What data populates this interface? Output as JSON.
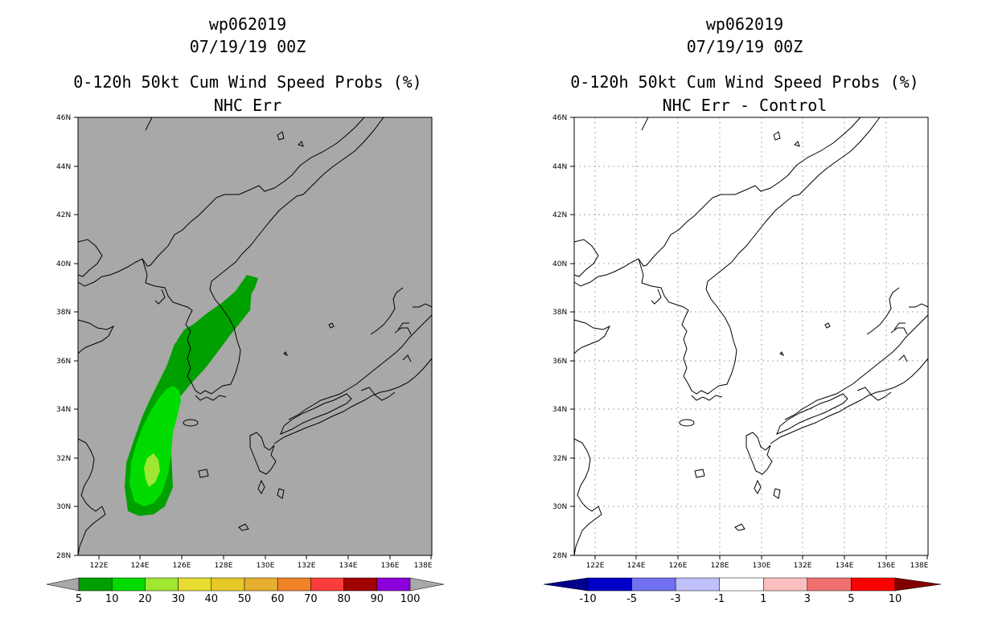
{
  "left_panel": {
    "title_line1": "wp062019",
    "title_line2": "07/19/19 00Z",
    "title_line3": "0-120h 50kt Cum Wind Speed Probs (%)",
    "title_line4": "NHC Err",
    "background_color": "#a8a8a8",
    "colorbar": {
      "labels": [
        "5",
        "10",
        "20",
        "30",
        "40",
        "50",
        "60",
        "70",
        "80",
        "90",
        "100"
      ],
      "colors": [
        "#00a000",
        "#00dc00",
        "#a0e632",
        "#e6dc32",
        "#e6c828",
        "#e6af2d",
        "#f08228",
        "#fa3c3c",
        "#a00000",
        "#8c00dc"
      ],
      "end_color": "#a8a8a8"
    },
    "contours": [
      {
        "level": "5-10",
        "color": "#00a000"
      },
      {
        "level": "10-20",
        "color": "#00dc00"
      },
      {
        "level": "20-30",
        "color": "#a0e632"
      }
    ]
  },
  "right_panel": {
    "title_line1": "wp062019",
    "title_line2": "07/19/19 00Z",
    "title_line3": "0-120h 50kt Cum Wind Speed Probs (%)",
    "title_line4": "NHC Err - Control",
    "background_color": "#ffffff",
    "colorbar": {
      "labels": [
        "-10",
        "-5",
        "-3",
        "-1",
        "1",
        "3",
        "5",
        "10"
      ],
      "colors": [
        "#0000c8",
        "#7070f0",
        "#c0c0fa",
        "#ffffff",
        "#fac0c0",
        "#f07070",
        "#fa0000"
      ],
      "low_end_color": "#00008c",
      "high_end_color": "#800000"
    }
  },
  "map": {
    "lat_labels": [
      "46N",
      "44N",
      "42N",
      "40N",
      "38N",
      "36N",
      "34N",
      "32N",
      "30N",
      "28N"
    ],
    "lon_labels": [
      "122E",
      "124E",
      "126E",
      "128E",
      "130E",
      "132E",
      "134E",
      "136E",
      "138E"
    ],
    "lat_range": [
      28,
      46
    ],
    "lon_range": [
      121,
      138
    ],
    "grid_lines": "dotted (right panel only)"
  }
}
